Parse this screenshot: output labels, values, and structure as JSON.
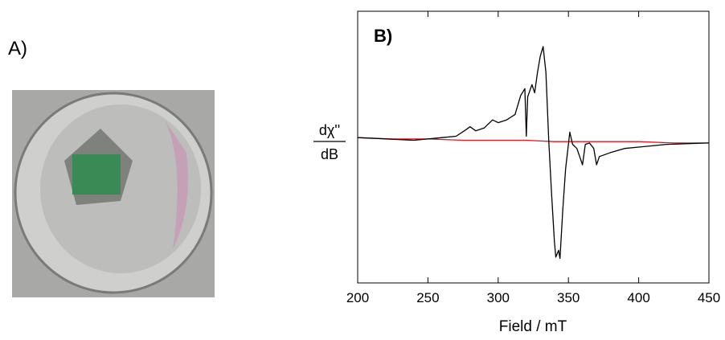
{
  "panel_a": {
    "label": "A)"
  },
  "chart_data": {
    "type": "line",
    "panel_label": "B)",
    "y_label": {
      "numerator": "dχ''",
      "denominator": "dB"
    },
    "x_label": "Field / mT",
    "xlim": [
      200,
      450
    ],
    "xticks": [
      200,
      250,
      300,
      350,
      400,
      450
    ],
    "ylim": [
      -1,
      1
    ],
    "series": [
      {
        "color": "#000000",
        "x": [
          200,
          220,
          240,
          260,
          270,
          276,
          280,
          284,
          290,
          296,
          300,
          306,
          312,
          316,
          319,
          320,
          321,
          324,
          326,
          328,
          330,
          332,
          334,
          336,
          338,
          340,
          341,
          343,
          344,
          346,
          348,
          350,
          351,
          353,
          356,
          358,
          360,
          362,
          365,
          368,
          370,
          372,
          380,
          390,
          400,
          420,
          450
        ],
        "values": [
          0.07,
          0.06,
          0.05,
          0.07,
          0.08,
          0.12,
          0.15,
          0.12,
          0.14,
          0.2,
          0.18,
          0.2,
          0.24,
          0.38,
          0.43,
          0.08,
          0.37,
          0.46,
          0.4,
          0.55,
          0.67,
          0.74,
          0.55,
          0.05,
          -0.34,
          -0.69,
          -0.81,
          -0.76,
          -0.82,
          -0.46,
          -0.16,
          0.02,
          0.11,
          0.02,
          -0.01,
          -0.07,
          -0.13,
          0.02,
          0.03,
          -0.01,
          -0.13,
          -0.07,
          -0.04,
          -0.01,
          0,
          0.02,
          0.03
        ]
      },
      {
        "color": "#e8141c",
        "x": [
          200,
          225,
          250,
          275,
          300,
          320,
          340,
          360,
          380,
          400,
          425,
          450
        ],
        "values": [
          0.07,
          0.06,
          0.06,
          0.05,
          0.05,
          0.05,
          0.04,
          0.04,
          0.04,
          0.04,
          0.03,
          0.03
        ]
      }
    ]
  }
}
